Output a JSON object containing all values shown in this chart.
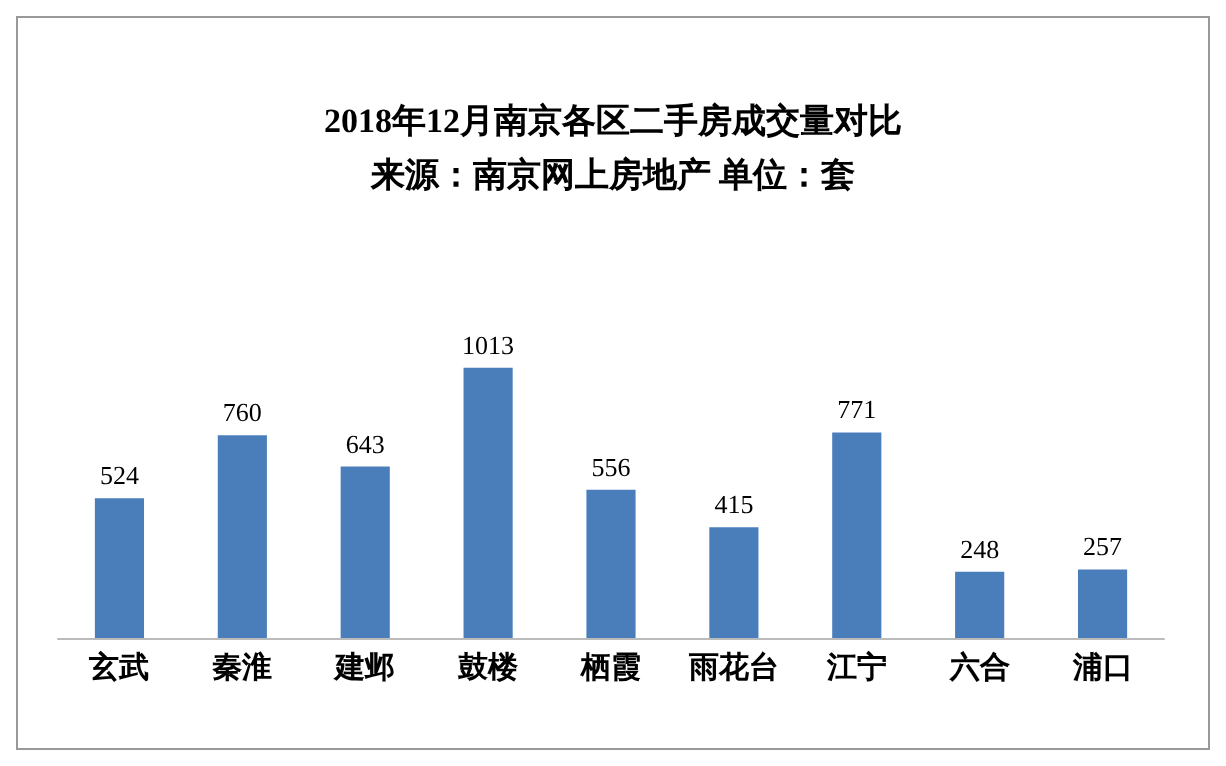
{
  "chart_data": {
    "type": "bar",
    "title": "2018年12月南京各区二手房成交量对比",
    "subtitle": "来源：南京网上房地产 单位：套",
    "categories": [
      "玄武",
      "秦淮",
      "建邺",
      "鼓楼",
      "栖霞",
      "雨花台",
      "江宁",
      "六合",
      "浦口"
    ],
    "values": [
      524,
      760,
      643,
      1013,
      556,
      415,
      771,
      248,
      257
    ],
    "color": "#4a7ebb",
    "data_labels": true
  }
}
